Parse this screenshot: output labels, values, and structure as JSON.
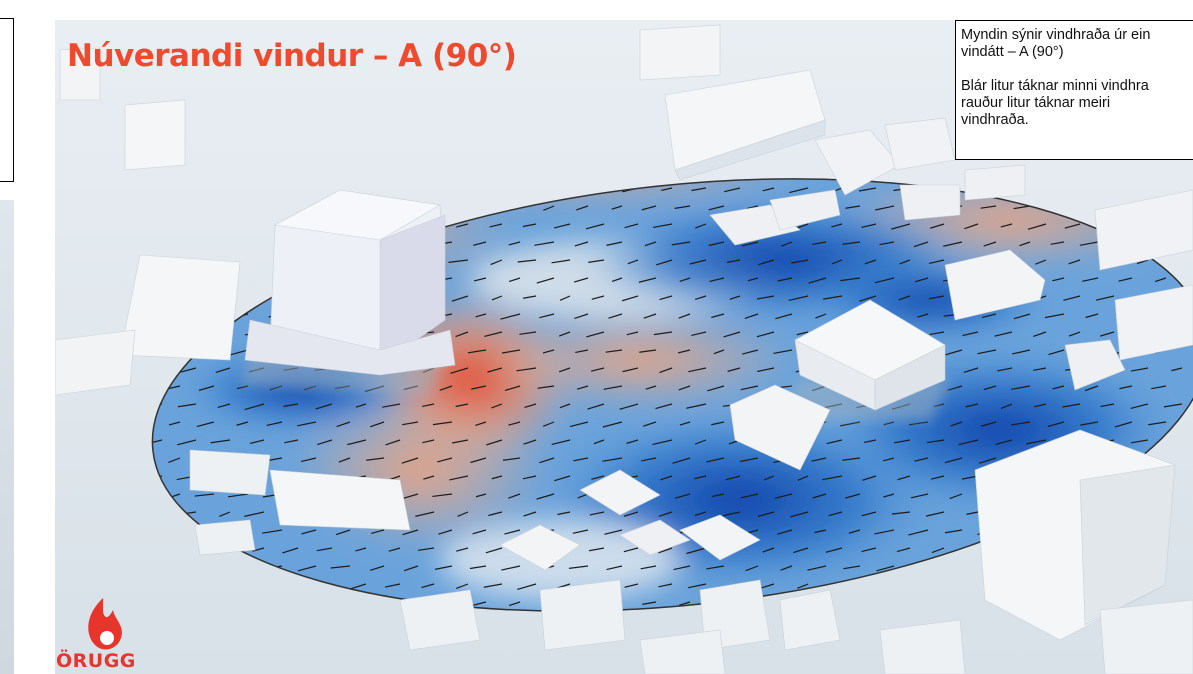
{
  "slide": {
    "title": "Núverandi vindur – A (90°)",
    "note": {
      "paragraphs": [
        [
          "Myndin sýnir vindhraða úr ein",
          "vindátt – A (90°)"
        ],
        [
          "Blár litur táknar minni vindhra",
          "rauður litur táknar meiri",
          "vindhraða."
        ]
      ]
    },
    "logo": "ÖRUGG"
  }
}
